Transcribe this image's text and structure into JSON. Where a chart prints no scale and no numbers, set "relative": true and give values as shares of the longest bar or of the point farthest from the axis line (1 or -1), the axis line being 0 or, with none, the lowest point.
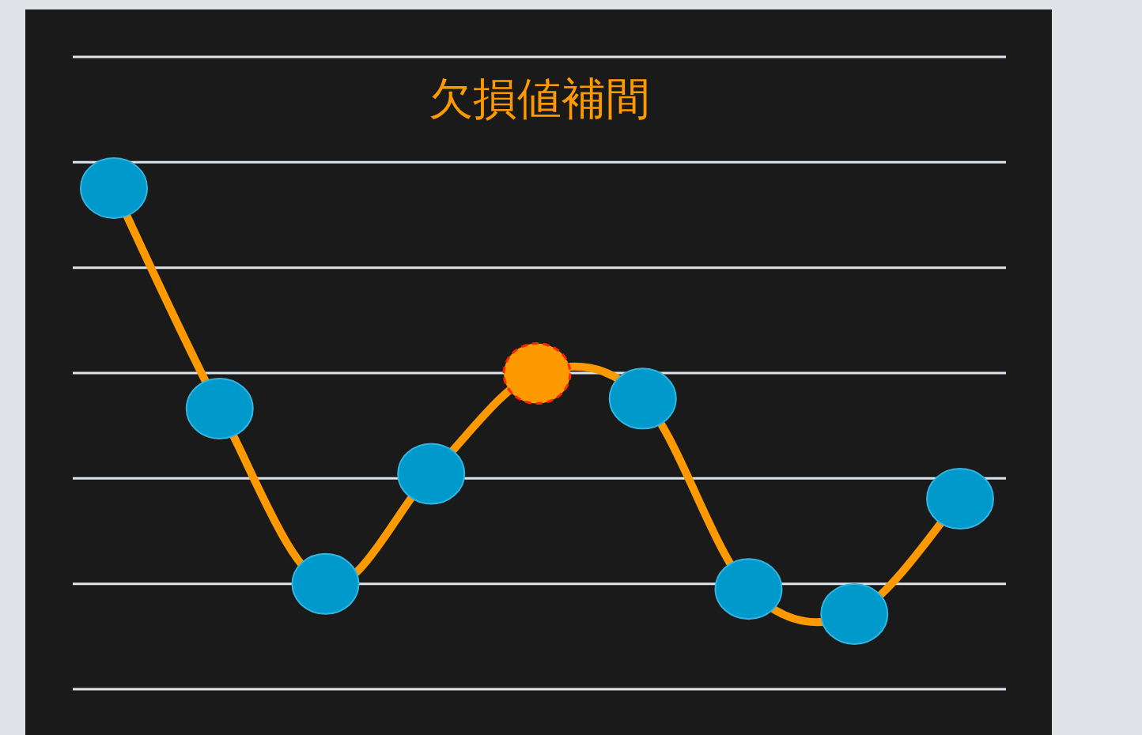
{
  "chart_data": {
    "type": "line",
    "title": "欠損値補間",
    "relative": true,
    "grid": true,
    "marker": "circle",
    "line_style": "solid",
    "categories": [
      null,
      null,
      null,
      null,
      null,
      null,
      null,
      null,
      null
    ],
    "series": [
      {
        "color": "#ff9900",
        "values": [
          1.0,
          0.56,
          0.21,
          0.43,
          0.63,
          0.58,
          0.2,
          0.15,
          0.38
        ],
        "colors": [
          "#0099cc",
          "#0099cc",
          "#0099cc",
          "#0099cc",
          "#ff9900",
          "#0099cc",
          "#0099cc",
          "#0099cc",
          "#0099cc"
        ]
      }
    ]
  }
}
